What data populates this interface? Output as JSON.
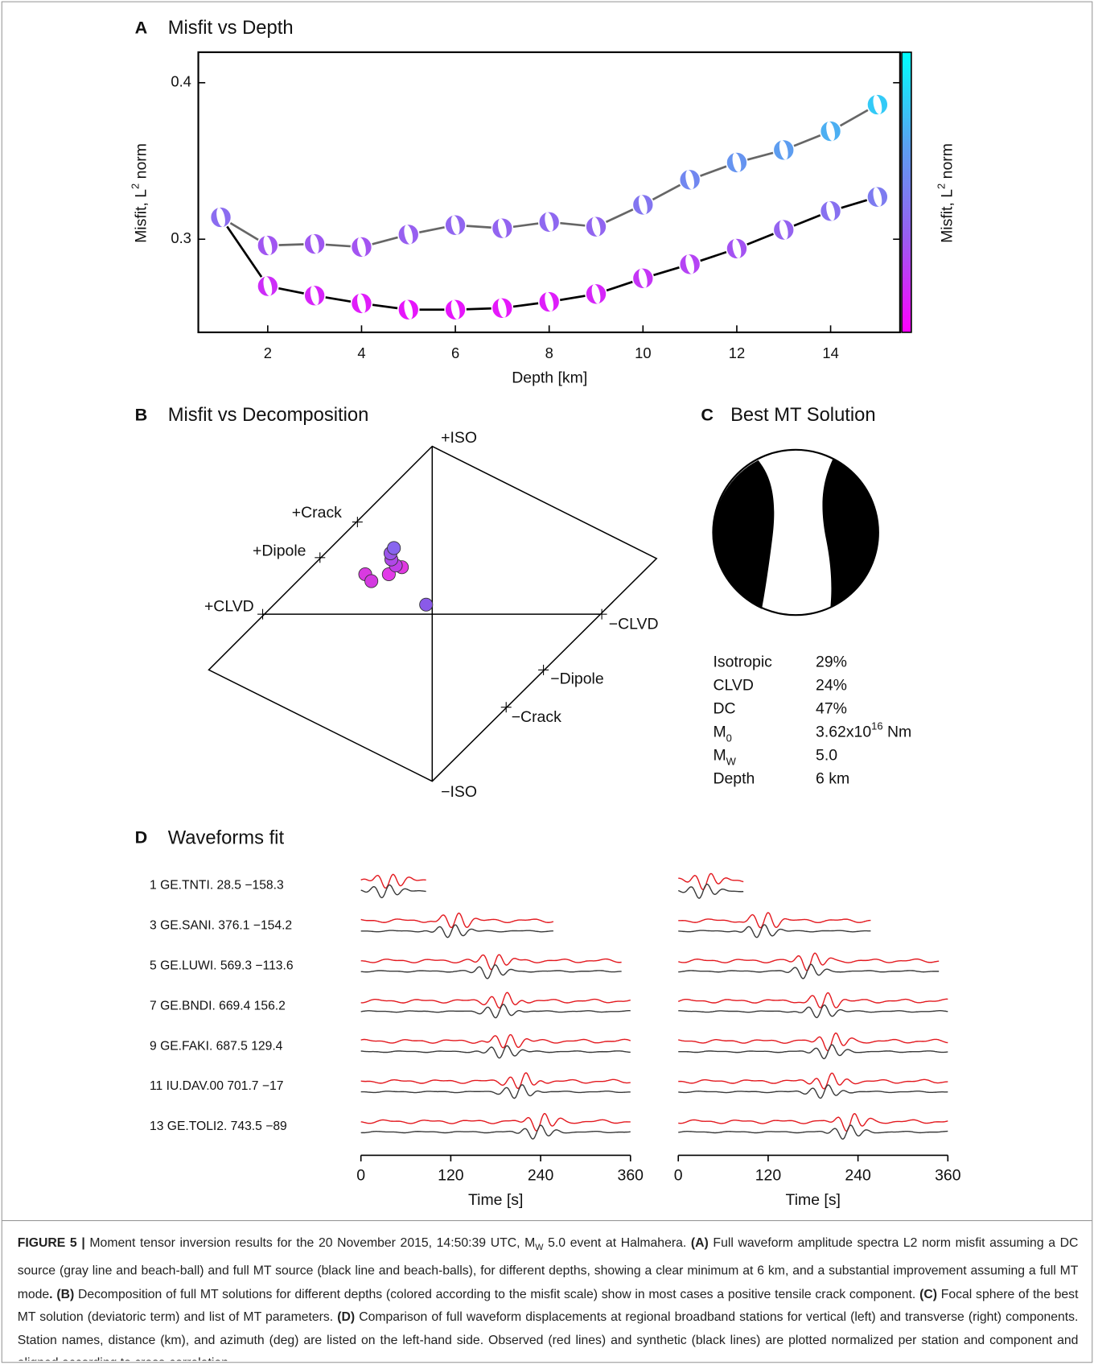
{
  "chart_data": [
    {
      "type": "line",
      "panel": "A",
      "title": "Misfit vs Depth",
      "x_label": "Depth [km]",
      "y_label": [
        "Misfit, L",
        "2",
        " norm"
      ],
      "x": [
        1,
        2,
        3,
        4,
        5,
        6,
        7,
        8,
        9,
        10,
        11,
        12,
        13,
        14,
        15
      ],
      "series": [
        {
          "color": "#666666",
          "values": [
            0.314,
            0.296,
            0.297,
            0.295,
            0.303,
            0.309,
            0.307,
            0.311,
            0.308,
            0.322,
            0.338,
            0.349,
            0.357,
            0.369,
            0.386
          ]
        },
        {
          "color": "#000000",
          "values": [
            0.314,
            0.27,
            0.264,
            0.259,
            0.255,
            0.255,
            0.256,
            0.26,
            0.265,
            0.275,
            0.284,
            0.294,
            0.306,
            0.318,
            0.327
          ]
        }
      ],
      "xlim": [
        0.52,
        15.48
      ],
      "ylim": [
        0.2405,
        0.4195
      ],
      "xticks": [
        2,
        4,
        6,
        8,
        10,
        12,
        14
      ],
      "yticks": [
        0.3,
        0.4
      ],
      "colorbar": {
        "label": [
          "Misfit, L",
          "2",
          " norm"
        ],
        "colors": [
          "#ff00ff",
          "#9a5cf0",
          "#5aa0f0",
          "#00ffff"
        ]
      }
    },
    {
      "type": "hudson",
      "panel": "B",
      "title": "Misfit vs Decomposition",
      "markers": [
        {
          "label": "+ISO",
          "x": 0,
          "y": 1
        },
        {
          "label": "−ISO",
          "x": 0,
          "y": -1
        },
        {
          "label": "+CLVD",
          "x": -1,
          "y": 0
        },
        {
          "label": "−CLVD",
          "x": 1,
          "y": 0
        },
        {
          "label": "+Dipole",
          "x": -0.662,
          "y": 0.337
        },
        {
          "label": "−Dipole",
          "x": 0.656,
          "y": -0.332
        },
        {
          "label": "+Crack",
          "x": -0.441,
          "y": 0.549
        },
        {
          "label": "−Crack",
          "x": 0.436,
          "y": -0.554
        }
      ],
      "points": [
        {
          "x": -0.036,
          "y": 0.057,
          "color": "#8a5ae8"
        },
        {
          "x": -0.395,
          "y": 0.238,
          "color": "#d93ae0"
        },
        {
          "x": -0.359,
          "y": 0.197,
          "color": "#d33ae0"
        },
        {
          "x": -0.256,
          "y": 0.238,
          "color": "#e23ae8"
        },
        {
          "x": -0.179,
          "y": 0.28,
          "color": "#e03ae0"
        },
        {
          "x": -0.215,
          "y": 0.29,
          "color": "#c040e8"
        },
        {
          "x": -0.241,
          "y": 0.326,
          "color": "#b048e8"
        },
        {
          "x": -0.246,
          "y": 0.363,
          "color": "#9a55e8"
        },
        {
          "x": -0.226,
          "y": 0.394,
          "color": "#8866ee"
        }
      ]
    },
    {
      "type": "waveform",
      "panel": "D",
      "title": "Waveforms fit",
      "x_label": "Time [s]",
      "xlim": [
        0,
        360
      ],
      "xticks": [
        0,
        120,
        240,
        360
      ],
      "observed_color": "#e3191f",
      "synthetic_color": "#3a3a3a",
      "stations": [
        {
          "label": "1 GE.TNTI. 28.5 −158.3",
          "traces": [
            {
              "start": 0,
              "end": 87,
              "peak": 33
            },
            {
              "start": 0,
              "end": 87,
              "peak": 33
            }
          ]
        },
        {
          "label": "3 GE.SANI. 376.1 −154.2",
          "traces": [
            {
              "start": 0,
              "end": 257,
              "peak": 121
            },
            {
              "start": 0,
              "end": 257,
              "peak": 110
            }
          ]
        },
        {
          "label": "5 GE.LUWI. 569.3 −113.6",
          "traces": [
            {
              "start": 0,
              "end": 348,
              "peak": 174
            },
            {
              "start": 0,
              "end": 348,
              "peak": 172
            }
          ]
        },
        {
          "label": "7 GE.BNDI. 669.4 156.2",
          "traces": [
            {
              "start": 0,
              "end": 360,
              "peak": 185
            },
            {
              "start": 0,
              "end": 360,
              "peak": 190
            }
          ]
        },
        {
          "label": "9 GE.FAKI. 687.5 129.4",
          "traces": [
            {
              "start": 0,
              "end": 360,
              "peak": 190
            },
            {
              "start": 0,
              "end": 360,
              "peak": 200
            }
          ]
        },
        {
          "label": "11 IU.DAV.00 701.7 −17",
          "traces": [
            {
              "start": 0,
              "end": 360,
              "peak": 210
            },
            {
              "start": 0,
              "end": 360,
              "peak": 195
            }
          ]
        },
        {
          "label": "13 GE.TOLI2. 743.5 −89",
          "traces": [
            {
              "start": 0,
              "end": 360,
              "peak": 235
            },
            {
              "start": 0,
              "end": 360,
              "peak": 225
            }
          ]
        }
      ]
    }
  ],
  "panel_c": {
    "panel": "C",
    "title": "Best MT Solution",
    "parameters": [
      {
        "name": [
          "Isotropic"
        ],
        "value": [
          "29%"
        ]
      },
      {
        "name": [
          "CLVD"
        ],
        "value": [
          "24%"
        ]
      },
      {
        "name": [
          "DC"
        ],
        "value": [
          "47%"
        ]
      },
      {
        "name": [
          "M",
          "0"
        ],
        "value": [
          "3.62x10",
          "16",
          " Nm"
        ]
      },
      {
        "name": [
          "M",
          "W"
        ],
        "value": [
          "5.0"
        ]
      },
      {
        "name": [
          "Depth"
        ],
        "value": [
          "6 km"
        ]
      }
    ]
  },
  "caption": [
    {
      "text": "FIGURE 5 |",
      "style": "b"
    },
    {
      "text": " Moment tensor inversion results for the 20 November 2015, 14:50:39 UTC, M"
    },
    {
      "text": "W",
      "style": "sub"
    },
    {
      "text": " 5.0 event at Halmahera. "
    },
    {
      "text": "(A)",
      "style": "b"
    },
    {
      "text": " Full waveform amplitude spectra L2 norm misfit assuming a DC source (gray line and beach-ball) and full MT source (black line and beach-balls), for different depths, showing a clear minimum at 6 km, and a substantial improvement assuming a full MT mode"
    },
    {
      "text": ". (B)",
      "style": "b"
    },
    {
      "text": " Decomposition of full MT solutions for different depths (colored according to the misfit scale) show in most cases a positive tensile crack component. "
    },
    {
      "text": "(C)",
      "style": "b"
    },
    {
      "text": " Focal sphere of the best MT solution (deviatoric term) and list of MT parameters. "
    },
    {
      "text": "(D)",
      "style": "b"
    },
    {
      "text": " Comparison of full waveform displacements at regional broadband stations for vertical (left) and transverse (right) components. Station names, distance (km), and azimuth (deg) are listed on the left-hand side. Observed (red lines) and synthetic (black lines) are plotted normalized per station and component and aligned according to cross-correlation."
    }
  ]
}
